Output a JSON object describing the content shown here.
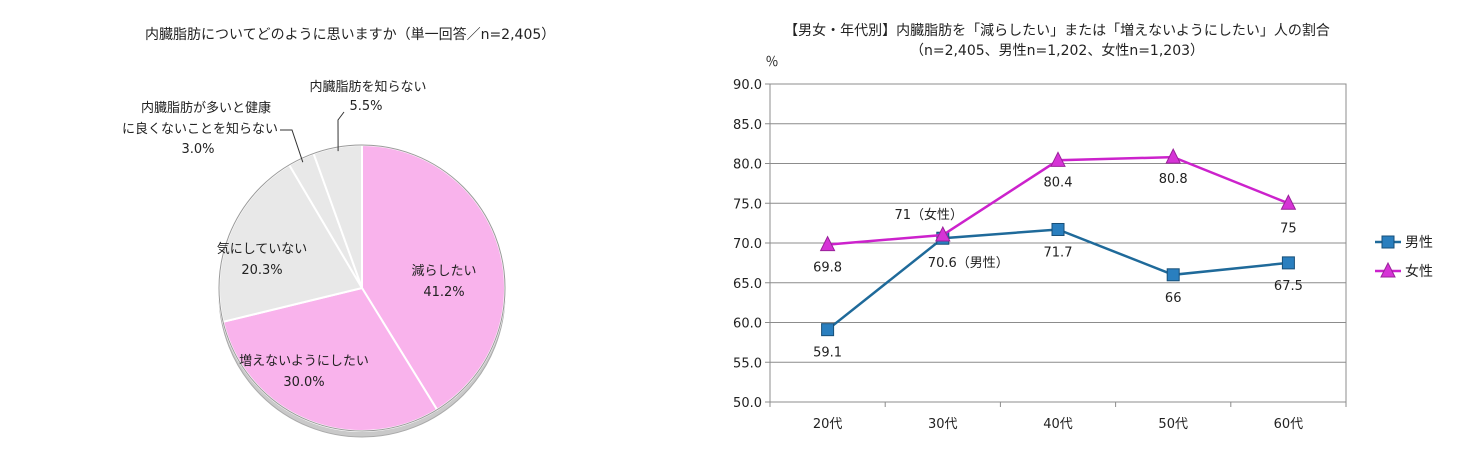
{
  "chart_data": [
    {
      "type": "pie",
      "title": "内臓脂肪についてどのように思いますか（単一回答／n=2,405）",
      "slices": [
        {
          "label": "減らしたい",
          "value_text": "41.2%",
          "value": 41.2,
          "color": "#f9b3ec"
        },
        {
          "label": "増えないようにしたい",
          "value_text": "30.0%",
          "value": 30.0,
          "color": "#f9b3ec"
        },
        {
          "label": "気にしていない",
          "value_text": "20.3%",
          "value": 20.3,
          "color": "#e8e8e8"
        },
        {
          "label": "内臓脂肪が多いと健康に良くないことを知らない",
          "label_lines": [
            "内臓脂肪が多いと健康",
            "に良くないことを知らない"
          ],
          "value_text": "3.0%",
          "value": 3.0,
          "color": "#e8e8e8"
        },
        {
          "label": "内臓脂肪を知らない",
          "value_text": "5.5%",
          "value": 5.5,
          "color": "#e8e8e8"
        }
      ]
    },
    {
      "type": "line",
      "title": "【男女・年代別】内臓脂肪を「減らしたい」または「増えないようにしたい」人の割合",
      "subtitle": "（n=2,405、男性n=1,202、女性n=1,203）",
      "ylabel": "％",
      "ylim": [
        50,
        90
      ],
      "yticks": [
        "50.0",
        "55.0",
        "60.0",
        "65.0",
        "70.0",
        "75.0",
        "80.0",
        "85.0",
        "90.0"
      ],
      "categories": [
        "20代",
        "30代",
        "40代",
        "50代",
        "60代"
      ],
      "grid": true,
      "legend_position": "right",
      "series": [
        {
          "name": "男性",
          "color": "#1f6a9a",
          "marker": "square",
          "values": [
            59.1,
            70.6,
            71.7,
            66.0,
            67.5
          ],
          "labels": [
            "59.1",
            "70.6（男性）",
            "71.7",
            "66",
            "67.5"
          ]
        },
        {
          "name": "女性",
          "color": "#cc22cc",
          "marker": "triangle",
          "values": [
            69.8,
            71.0,
            80.4,
            80.8,
            75.0
          ],
          "labels": [
            "69.8",
            "71（女性）",
            "80.4",
            "80.8",
            "75"
          ]
        }
      ]
    }
  ]
}
